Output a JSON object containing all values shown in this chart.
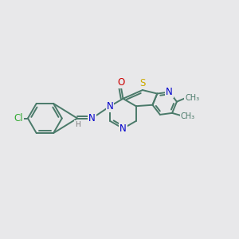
{
  "bg_color": "#e8e8ea",
  "bond_color": "#4a7a6a",
  "bond_width": 1.4,
  "atom_colors": {
    "N": "#0000cc",
    "O": "#cc0000",
    "S": "#ccaa00",
    "Cl": "#33aa33",
    "C": "#4a7a6a",
    "H": "#777777"
  },
  "font_size": 8.5,
  "fig_size": [
    3.0,
    3.0
  ],
  "dpi": 100
}
